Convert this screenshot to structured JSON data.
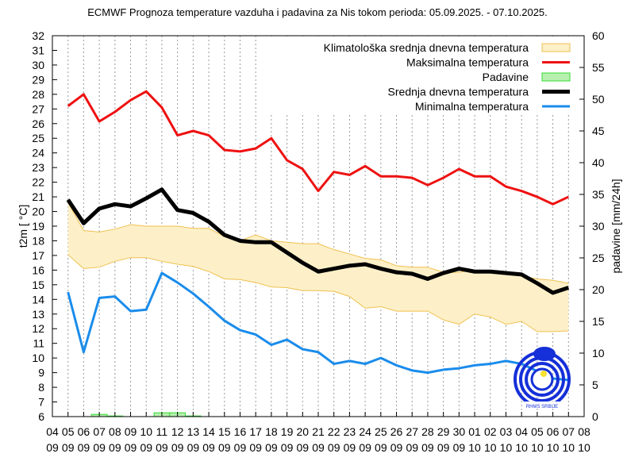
{
  "chart_data": {
    "type": "line",
    "title": "ECMWF Prognoza temperature vazduha i padavina za Nis tokom perioda: 05.09.2025. - 07.10.2025.",
    "ylabel": "t2m [ °C]",
    "y2label": "padavine [mm/24h]",
    "ylim": [
      6,
      32
    ],
    "y2lim": [
      0,
      60
    ],
    "grid": "vertical dotted",
    "legend_position": "top-right",
    "x_tick_labels": [
      [
        "04",
        "09"
      ],
      [
        "05",
        "09"
      ],
      [
        "06",
        "09"
      ],
      [
        "07",
        "09"
      ],
      [
        "08",
        "09"
      ],
      [
        "09",
        "09"
      ],
      [
        "10",
        "09"
      ],
      [
        "11",
        "09"
      ],
      [
        "12",
        "09"
      ],
      [
        "13",
        "09"
      ],
      [
        "14",
        "09"
      ],
      [
        "15",
        "09"
      ],
      [
        "16",
        "09"
      ],
      [
        "17",
        "09"
      ],
      [
        "18",
        "09"
      ],
      [
        "19",
        "09"
      ],
      [
        "20",
        "09"
      ],
      [
        "21",
        "09"
      ],
      [
        "22",
        "09"
      ],
      [
        "23",
        "09"
      ],
      [
        "24",
        "09"
      ],
      [
        "25",
        "09"
      ],
      [
        "26",
        "09"
      ],
      [
        "27",
        "09"
      ],
      [
        "28",
        "09"
      ],
      [
        "29",
        "09"
      ],
      [
        "30",
        "09"
      ],
      [
        "01",
        "10"
      ],
      [
        "02",
        "10"
      ],
      [
        "03",
        "10"
      ],
      [
        "04",
        "10"
      ],
      [
        "05",
        "10"
      ],
      [
        "06",
        "10"
      ],
      [
        "07",
        "10"
      ],
      [
        "08",
        "10"
      ]
    ],
    "y_ticks": [
      6,
      7,
      8,
      9,
      10,
      11,
      12,
      13,
      14,
      15,
      16,
      17,
      18,
      19,
      20,
      21,
      22,
      23,
      24,
      25,
      26,
      27,
      28,
      29,
      30,
      31,
      32
    ],
    "y2_ticks": [
      0,
      5,
      10,
      15,
      20,
      25,
      30,
      35,
      40,
      45,
      50,
      55,
      60
    ],
    "x": [
      "05.09",
      "06.09",
      "07.09",
      "08.09",
      "09.09",
      "10.09",
      "11.09",
      "12.09",
      "13.09",
      "14.09",
      "15.09",
      "16.09",
      "17.09",
      "18.09",
      "19.09",
      "20.09",
      "21.09",
      "22.09",
      "23.09",
      "24.09",
      "25.09",
      "26.09",
      "27.09",
      "28.09",
      "29.09",
      "30.09",
      "01.10",
      "02.10",
      "03.10",
      "04.10",
      "05.10",
      "06.10",
      "07.10"
    ],
    "climate_band": {
      "name": "Klimatološka srednja dnevna temperatura",
      "color": "#fdf0c8",
      "edge": "#f0c050",
      "upper": [
        20.6,
        18.7,
        18.6,
        18.8,
        19.1,
        19.0,
        19.0,
        19.0,
        18.85,
        18.85,
        18.3,
        18.0,
        18.4,
        18.0,
        17.9,
        17.8,
        17.8,
        17.4,
        17.1,
        16.8,
        16.7,
        16.3,
        16.2,
        16.2,
        15.85,
        15.85,
        16.0,
        15.9,
        15.8,
        15.6,
        15.4,
        15.3,
        15.1
      ],
      "lower": [
        17.05,
        16.1,
        16.2,
        16.6,
        16.85,
        16.85,
        16.6,
        16.4,
        16.25,
        15.9,
        15.4,
        15.35,
        15.15,
        14.85,
        14.8,
        14.6,
        14.6,
        14.55,
        14.2,
        13.4,
        13.5,
        13.2,
        13.2,
        13.2,
        12.6,
        12.3,
        13.0,
        12.8,
        12.3,
        12.5,
        11.8,
        11.8,
        11.85
      ]
    },
    "series": [
      {
        "name": "Maksimalna temperatura",
        "color": "#ee1111",
        "values": [
          27.2,
          28.0,
          26.15,
          26.8,
          27.6,
          28.2,
          27.1,
          25.2,
          25.5,
          25.2,
          24.2,
          24.1,
          24.3,
          25.0,
          23.5,
          22.9,
          21.4,
          22.7,
          22.5,
          23.1,
          22.4,
          22.4,
          22.3,
          21.8,
          22.3,
          22.9,
          22.4,
          22.4,
          21.7,
          21.4,
          21.0,
          20.5,
          21.0
        ]
      },
      {
        "name": "Srednja dnevna temperatura",
        "color": "#000000",
        "values": [
          20.8,
          19.2,
          20.2,
          20.5,
          20.35,
          20.9,
          21.5,
          20.1,
          19.9,
          19.3,
          18.4,
          18.0,
          17.9,
          17.9,
          17.2,
          16.5,
          15.9,
          16.1,
          16.3,
          16.4,
          16.1,
          15.85,
          15.75,
          15.4,
          15.8,
          16.1,
          15.9,
          15.9,
          15.8,
          15.7,
          15.1,
          14.45,
          14.8
        ]
      },
      {
        "name": "Minimalna temperatura",
        "color": "#1a8ceb",
        "values": [
          14.5,
          10.4,
          14.1,
          14.2,
          13.2,
          13.3,
          15.8,
          15.15,
          14.4,
          13.5,
          12.55,
          11.9,
          11.6,
          10.9,
          11.25,
          10.6,
          10.4,
          9.6,
          9.8,
          9.6,
          10.0,
          9.5,
          9.15,
          9.0,
          9.2,
          9.3,
          9.5,
          9.6,
          9.8,
          9.6,
          9.1,
          8.6,
          8.5
        ]
      }
    ],
    "precipitation": {
      "name": "Padavine",
      "color": "#b8f0b0",
      "edge": "#33dd33",
      "values": [
        0,
        0,
        0.35,
        0.1,
        0,
        0,
        0.6,
        0.6,
        0.1,
        0,
        0,
        0,
        0,
        0,
        0,
        0,
        0,
        0,
        0,
        0,
        0,
        0,
        0,
        0,
        0,
        0,
        0,
        0,
        0,
        0,
        0,
        0,
        0
      ]
    }
  }
}
